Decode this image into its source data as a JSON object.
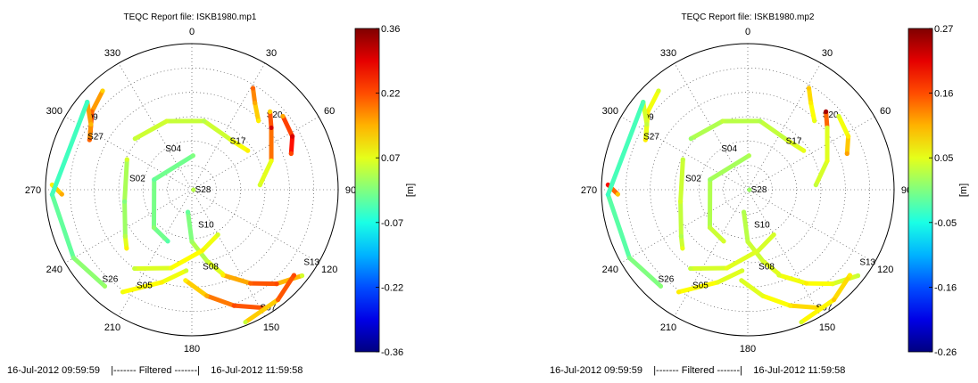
{
  "chart_data": [
    {
      "type": "scatter",
      "title": "TEQC Report file: ISKB1980.mp1",
      "projection": "polar-skyplot",
      "radius_range": [
        0,
        90
      ],
      "azimuth_labels": [
        "0",
        "30",
        "60",
        "90",
        "120",
        "150",
        "180",
        "210",
        "240",
        "270",
        "300",
        "330"
      ],
      "grid": true,
      "colorbar": {
        "label": "[m]",
        "ticks": [
          "0.36",
          "0.22",
          "0.07",
          "-0.07",
          "-0.22",
          "-0.36"
        ],
        "range": [
          -0.36,
          0.36
        ]
      },
      "footer": {
        "start": "16-Jul-2012 09:59:59",
        "middle": "|-------  Filtered  -------|",
        "end": "16-Jul-2012 11:59:58"
      },
      "satellites": [
        {
          "label": "S17",
          "label_az": 38,
          "label_el": 52,
          "track": [
            [
              312,
              43
            ],
            [
              340,
              45
            ],
            [
              10,
              47
            ],
            [
              38,
              51
            ],
            [
              55,
              48
            ]
          ],
          "values": [
            0.05,
            0.06,
            0.04,
            0.07,
            0.1
          ]
        },
        {
          "label": "S20",
          "label_az": 45,
          "label_el": 25,
          "track": [
            [
              31,
              17
            ],
            [
              36,
              24
            ],
            [
              44,
              31
            ]
          ],
          "values": [
            0.2,
            0.15,
            0.1
          ]
        },
        {
          "label": "",
          "label_az": 0,
          "label_el": 0,
          "track": [
            [
              45,
              22
            ],
            [
              52,
              28
            ],
            [
              70,
              38
            ],
            [
              86,
              48
            ]
          ],
          "values": [
            0.12,
            0.3,
            0.08,
            0.06
          ]
        },
        {
          "label": "",
          "label_az": 0,
          "label_el": 0,
          "track": [
            [
              51,
              18
            ],
            [
              62,
              20
            ],
            [
              70,
              25
            ]
          ],
          "values": [
            0.15,
            0.3,
            0.22
          ]
        },
        {
          "label": "09",
          "label_az": 305,
          "label_el": 12,
          "track": [
            [
              318,
              8
            ],
            [
              308,
              12
            ],
            [
              300,
              18
            ]
          ],
          "values": [
            0.12,
            0.2,
            0.25
          ]
        },
        {
          "label": "S27",
          "label_az": 297,
          "label_el": 18,
          "track": [
            [
              310,
              6
            ],
            [
              303,
              16
            ],
            [
              296,
              20
            ]
          ],
          "values": [
            0.18,
            0.14,
            0.2
          ]
        },
        {
          "label": "S04",
          "label_az": 327,
          "label_el": 60,
          "track": [
            [
              2,
              69
            ],
            [
              285,
              66
            ],
            [
              225,
              57
            ],
            [
              205,
              55
            ]
          ],
          "values": [
            0.0,
            -0.02,
            0.01,
            -0.03
          ]
        },
        {
          "label": "S02",
          "label_az": 280,
          "label_el": 51,
          "track": [
            [
              295,
              46
            ],
            [
              260,
              48
            ],
            [
              235,
              40
            ],
            [
              228,
              36
            ]
          ],
          "values": [
            0.06,
            0.0,
            0.04,
            0.1
          ]
        },
        {
          "label": "S28",
          "label_az": 90,
          "label_el": 88,
          "track": [
            [
              92,
              89
            ]
          ],
          "values": [
            0.04
          ]
        },
        {
          "label": "",
          "label_az": 0,
          "label_el": 0,
          "track": [
            [
              272,
              4
            ],
            [
              268,
              10
            ]
          ],
          "values": [
            0.1,
            0.15
          ]
        },
        {
          "label": "S26",
          "label_az": 225,
          "label_el": 12,
          "track": [
            [
              310,
              6
            ],
            [
              268,
              4
            ],
            [
              240,
              6
            ],
            [
              222,
              10
            ]
          ],
          "values": [
            -0.05,
            -0.04,
            0.0,
            0.02
          ]
        },
        {
          "label": "S10",
          "label_az": 170,
          "label_el": 68,
          "track": [
            [
              190,
              76
            ],
            [
              180,
              58
            ],
            [
              168,
              45
            ],
            [
              160,
              35
            ]
          ],
          "values": [
            -0.02,
            0.02,
            0.05,
            0.08
          ]
        },
        {
          "label": "S08",
          "label_az": 172,
          "label_el": 42,
          "track": [
            [
              216,
              30
            ],
            [
              195,
              40
            ],
            [
              170,
              52
            ],
            [
              150,
              58
            ]
          ],
          "values": [
            0.05,
            0.08,
            0.1,
            0.06
          ]
        },
        {
          "label": "S05",
          "label_az": 210,
          "label_el": 22,
          "track": [
            [
              214,
              14
            ],
            [
              198,
              30
            ],
            [
              184,
              40
            ]
          ],
          "values": [
            0.08,
            0.1,
            0.06
          ]
        },
        {
          "label": "S13",
          "label_az": 123,
          "label_el": 8,
          "track": [
            [
              128,
              4
            ],
            [
              138,
              12
            ],
            [
              148,
              22
            ],
            [
              160,
              34
            ]
          ],
          "values": [
            0.06,
            0.22,
            0.2,
            0.1
          ]
        },
        {
          "label": "S07",
          "label_az": 150,
          "label_el": 6,
          "track": [
            [
              148,
              4
            ],
            [
              160,
              14
            ],
            [
              172,
              24
            ],
            [
              184,
              34
            ]
          ],
          "values": [
            0.2,
            0.22,
            0.15,
            0.1
          ]
        },
        {
          "label": "",
          "label_az": 0,
          "label_el": 0,
          "track": [
            [
              158,
              2
            ],
            [
              142,
              4
            ],
            [
              130,
              8
            ]
          ],
          "values": [
            0.05,
            0.2,
            0.22
          ]
        }
      ]
    },
    {
      "type": "scatter",
      "title": "TEQC Report file: ISKB1980.mp2",
      "projection": "polar-skyplot",
      "radius_range": [
        0,
        90
      ],
      "azimuth_labels": [
        "0",
        "30",
        "60",
        "90",
        "120",
        "150",
        "180",
        "210",
        "240",
        "270",
        "300",
        "330"
      ],
      "grid": true,
      "colorbar": {
        "label": "[m]",
        "ticks": [
          "0.27",
          "0.16",
          "0.05",
          "-0.05",
          "-0.16",
          "-0.26"
        ],
        "range": [
          -0.26,
          0.27
        ]
      },
      "footer": {
        "start": "16-Jul-2012 09:59:59",
        "middle": "|-------  Filtered  -------|",
        "end": "16-Jul-2012 11:59:58"
      },
      "satellites": [
        {
          "label": "S17",
          "label_az": 38,
          "label_el": 52,
          "track": [
            [
              312,
              43
            ],
            [
              340,
              45
            ],
            [
              10,
              47
            ],
            [
              38,
              51
            ],
            [
              55,
              48
            ]
          ],
          "values": [
            0.02,
            0.04,
            0.03,
            0.05,
            0.06
          ]
        },
        {
          "label": "S20",
          "label_az": 45,
          "label_el": 25,
          "track": [
            [
              31,
              17
            ],
            [
              36,
              24
            ],
            [
              44,
              31
            ]
          ],
          "values": [
            0.1,
            0.08,
            0.06
          ]
        },
        {
          "label": "",
          "label_az": 0,
          "label_el": 0,
          "track": [
            [
              45,
              22
            ],
            [
              52,
              28
            ],
            [
              70,
              38
            ],
            [
              86,
              48
            ]
          ],
          "values": [
            0.25,
            0.05,
            0.06,
            0.04
          ]
        },
        {
          "label": "",
          "label_az": 0,
          "label_el": 0,
          "track": [
            [
              51,
              18
            ],
            [
              62,
              20
            ],
            [
              70,
              25
            ]
          ],
          "values": [
            0.05,
            0.08,
            0.12
          ]
        },
        {
          "label": "09",
          "label_az": 305,
          "label_el": 12,
          "track": [
            [
              318,
              8
            ],
            [
              308,
              12
            ],
            [
              300,
              18
            ]
          ],
          "values": [
            0.05,
            0.08,
            0.06
          ]
        },
        {
          "label": "S27",
          "label_az": 297,
          "label_el": 18,
          "track": [
            [
              310,
              6
            ],
            [
              303,
              16
            ],
            [
              296,
              20
            ]
          ],
          "values": [
            0.06,
            0.04,
            0.08
          ]
        },
        {
          "label": "S04",
          "label_az": 327,
          "label_el": 60,
          "track": [
            [
              2,
              69
            ],
            [
              285,
              66
            ],
            [
              225,
              57
            ],
            [
              205,
              55
            ]
          ],
          "values": [
            0.03,
            0.02,
            0.04,
            0.05
          ]
        },
        {
          "label": "S02",
          "label_az": 280,
          "label_el": 51,
          "track": [
            [
              295,
              46
            ],
            [
              260,
              48
            ],
            [
              235,
              40
            ],
            [
              228,
              36
            ]
          ],
          "values": [
            0.04,
            0.05,
            0.03,
            0.06
          ]
        },
        {
          "label": "S28",
          "label_az": 90,
          "label_el": 88,
          "track": [
            [
              92,
              89
            ]
          ],
          "values": [
            0.02
          ]
        },
        {
          "label": "",
          "label_az": 0,
          "label_el": 0,
          "track": [
            [
              272,
              4
            ],
            [
              268,
              10
            ]
          ],
          "values": [
            0.2,
            0.1
          ]
        },
        {
          "label": "S26",
          "label_az": 225,
          "label_el": 12,
          "track": [
            [
              310,
              6
            ],
            [
              268,
              4
            ],
            [
              240,
              6
            ],
            [
              222,
              10
            ]
          ],
          "values": [
            -0.02,
            -0.03,
            0.0,
            0.01
          ]
        },
        {
          "label": "S10",
          "label_az": 170,
          "label_el": 68,
          "track": [
            [
              190,
              76
            ],
            [
              180,
              58
            ],
            [
              168,
              45
            ],
            [
              160,
              35
            ]
          ],
          "values": [
            0.03,
            0.04,
            0.05,
            0.06
          ]
        },
        {
          "label": "S08",
          "label_az": 172,
          "label_el": 42,
          "track": [
            [
              216,
              30
            ],
            [
              195,
              40
            ],
            [
              170,
              52
            ],
            [
              150,
              58
            ]
          ],
          "values": [
            0.04,
            0.06,
            0.05,
            0.05
          ]
        },
        {
          "label": "S05",
          "label_az": 210,
          "label_el": 22,
          "track": [
            [
              214,
              14
            ],
            [
              198,
              30
            ],
            [
              184,
              40
            ]
          ],
          "values": [
            0.08,
            0.06,
            0.05
          ]
        },
        {
          "label": "S13",
          "label_az": 123,
          "label_el": 8,
          "track": [
            [
              128,
              4
            ],
            [
              138,
              12
            ],
            [
              148,
              22
            ],
            [
              160,
              34
            ]
          ],
          "values": [
            0.04,
            0.06,
            0.08,
            0.05
          ]
        },
        {
          "label": "S07",
          "label_az": 150,
          "label_el": 6,
          "track": [
            [
              148,
              4
            ],
            [
              160,
              14
            ],
            [
              172,
              24
            ],
            [
              184,
              34
            ]
          ],
          "values": [
            0.1,
            0.08,
            0.06,
            0.05
          ]
        },
        {
          "label": "",
          "label_az": 0,
          "label_el": 0,
          "track": [
            [
              158,
              2
            ],
            [
              142,
              4
            ],
            [
              130,
              8
            ]
          ],
          "values": [
            0.05,
            0.1,
            0.08
          ]
        }
      ]
    }
  ]
}
